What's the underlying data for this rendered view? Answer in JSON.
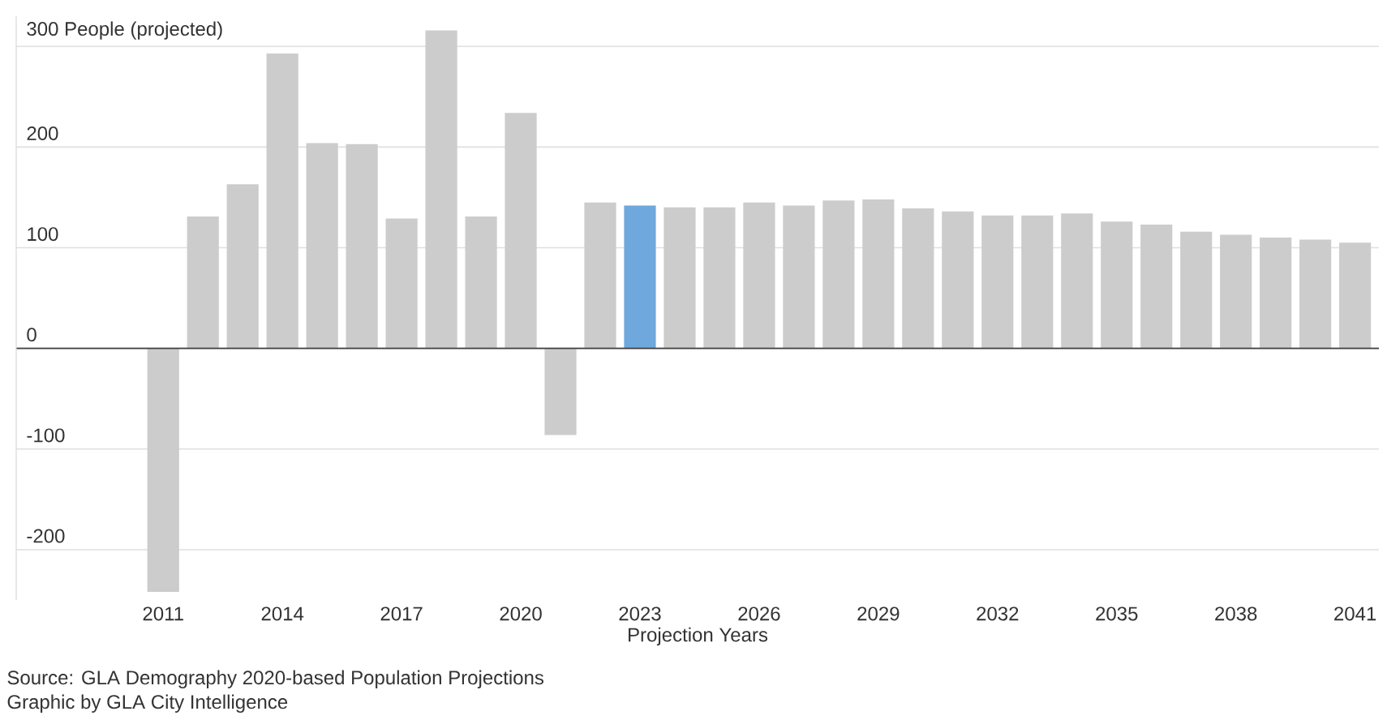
{
  "chart_data": {
    "type": "bar",
    "xlabel": "Projection Years",
    "x": [
      2011,
      2012,
      2013,
      2014,
      2015,
      2016,
      2017,
      2018,
      2019,
      2020,
      2021,
      2022,
      2023,
      2024,
      2025,
      2026,
      2027,
      2028,
      2029,
      2030,
      2031,
      2032,
      2033,
      2034,
      2035,
      2036,
      2037,
      2038,
      2039,
      2040,
      2041
    ],
    "values": [
      -242,
      131,
      163,
      293,
      204,
      203,
      129,
      316,
      131,
      234,
      -86,
      145,
      142,
      140,
      140,
      145,
      142,
      147,
      148,
      139,
      136,
      132,
      132,
      134,
      126,
      123,
      116,
      113,
      110,
      108,
      105
    ],
    "colors": [
      "#cccccc",
      "#cccccc",
      "#cccccc",
      "#cccccc",
      "#cccccc",
      "#cccccc",
      "#cccccc",
      "#cccccc",
      "#cccccc",
      "#cccccc",
      "#cccccc",
      "#cccccc",
      "#6fa8dc",
      "#cccccc",
      "#cccccc",
      "#cccccc",
      "#cccccc",
      "#cccccc",
      "#cccccc",
      "#cccccc",
      "#cccccc",
      "#cccccc",
      "#cccccc",
      "#cccccc",
      "#cccccc",
      "#cccccc",
      "#cccccc",
      "#cccccc",
      "#cccccc",
      "#cccccc",
      "#cccccc"
    ],
    "xlim": [
      2007.3,
      2041.6
    ],
    "ylim": [
      -250,
      330
    ],
    "xticks": [
      2011,
      2014,
      2017,
      2020,
      2023,
      2026,
      2029,
      2032,
      2035,
      2038,
      2041
    ],
    "yticks": [
      -200,
      -100,
      0,
      100,
      200,
      {
        "value": 300,
        "label": "300 People (projected)"
      }
    ],
    "grid": "y",
    "annotations": [
      "Source: GLA Demography 2020-based Population Projections",
      "Graphic by GLA City Intelligence"
    ]
  }
}
